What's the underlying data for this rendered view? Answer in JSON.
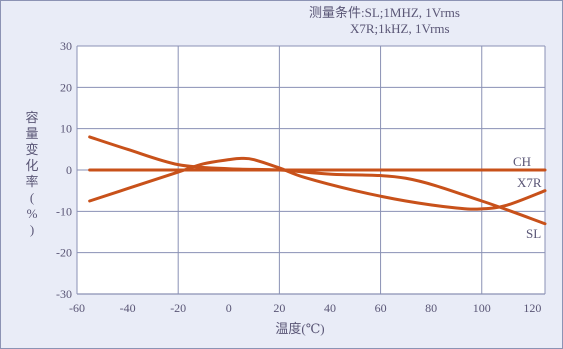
{
  "conditions": {
    "line1": "测量条件:SL;1MHZ, 1Vrms",
    "line2": "X7R;1kHZ, 1Vrms"
  },
  "chart_data": {
    "type": "line",
    "xlabel": "温度(℃)",
    "ylabel_chars": [
      "容",
      "量",
      "变",
      "化",
      "率",
      "(",
      "%",
      ")"
    ],
    "xlim": [
      -60,
      125
    ],
    "ylim": [
      -30,
      30
    ],
    "x_ticks": [
      -60,
      -40,
      -20,
      0,
      20,
      40,
      60,
      80,
      100,
      120
    ],
    "y_ticks": [
      30,
      20,
      10,
      0,
      -10,
      -20,
      -30
    ],
    "x_gridlines": [
      -20,
      20,
      60,
      100
    ],
    "colors": {
      "line": "#c8511a",
      "grid": "#8a91b4",
      "plot_bg": "#ffffff",
      "frame_bg": "#e9ecf7",
      "text": "#5a5676"
    },
    "series": [
      {
        "name": "CH",
        "x": [
          -55,
          125
        ],
        "y": [
          0,
          0
        ]
      },
      {
        "name": "X7R",
        "x": [
          -55,
          -40,
          -20,
          -10,
          0,
          5,
          10,
          20,
          30,
          50,
          70,
          90,
          100,
          110,
          125
        ],
        "y": [
          -7.5,
          -4.5,
          -0.5,
          1.5,
          2.5,
          2.8,
          2.5,
          0.5,
          -1.8,
          -5,
          -7.5,
          -9.2,
          -9.4,
          -8.5,
          -5
        ]
      },
      {
        "name": "SL",
        "x": [
          -55,
          -40,
          -20,
          0,
          20,
          40,
          70,
          100,
          125
        ],
        "y": [
          8,
          5,
          1.3,
          0.3,
          0,
          -1,
          -2,
          -7.5,
          -13
        ]
      }
    ]
  }
}
